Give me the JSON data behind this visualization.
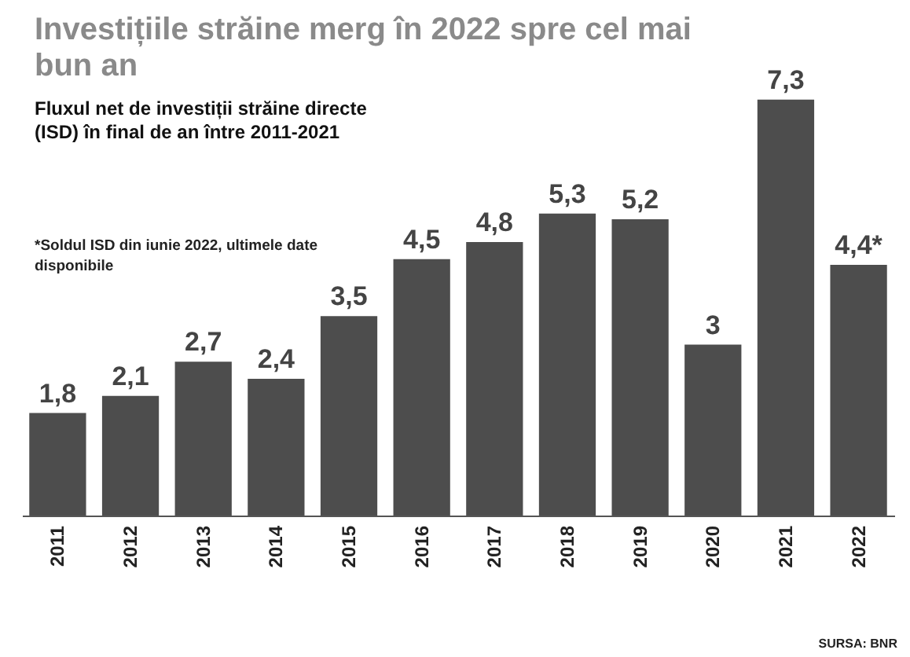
{
  "chart_data": {
    "type": "bar",
    "title": "Investițiile străine merg în 2022 spre cel mai bun an",
    "subtitle": "Fluxul net de investiții străine directe (ISD) în final de an între 2011-2021",
    "annotations": [
      "*Soldul ISD din iunie 2022, ultimele date disponibile",
      "SURSA: BNR"
    ],
    "categories": [
      "2011",
      "2012",
      "2013",
      "2014",
      "2015",
      "2016",
      "2017",
      "2018",
      "2019",
      "2020",
      "2021",
      "2022"
    ],
    "values": [
      1.8,
      2.1,
      2.7,
      2.4,
      3.5,
      4.5,
      4.8,
      5.3,
      5.2,
      3,
      7.3,
      4.4
    ],
    "value_labels": [
      "1,8",
      "2,1",
      "2,7",
      "2,4",
      "3,5",
      "4,5",
      "4,8",
      "5,3",
      "5,2",
      "3",
      "7,3",
      "4,4*"
    ],
    "color": "#4d4d4d"
  }
}
